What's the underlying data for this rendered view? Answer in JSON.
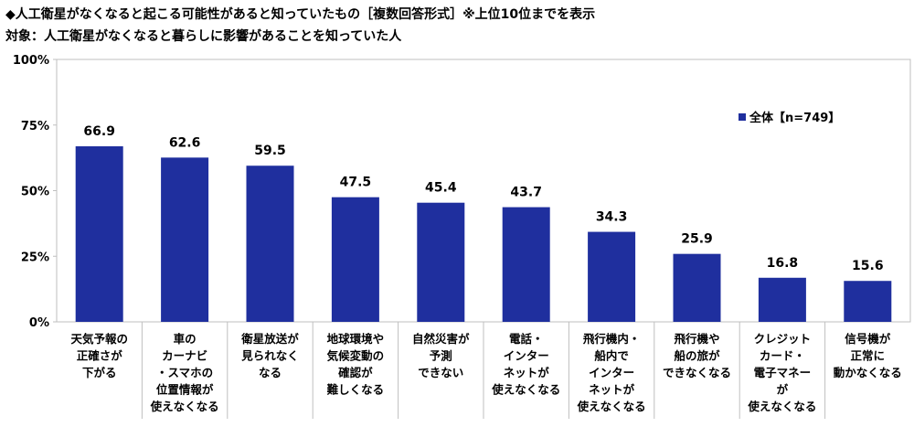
{
  "titles": {
    "line1": "◆人工衛星がなくなると起こる可能性があると知っていたもの［複数回答形式］※上位10位までを表示",
    "line2": "対象：人工衛星がなくなると暮らしに影響があることを知っていた人"
  },
  "chart_data": {
    "type": "bar",
    "categories": [
      [
        "天気予報の",
        "正確さが",
        "下がる"
      ],
      [
        "車の",
        "カーナビ",
        "・スマホの",
        "位置情報が",
        "使えなくなる"
      ],
      [
        "衛星放送が",
        "見られなく",
        "なる"
      ],
      [
        "地球環境や",
        "気候変動の",
        "確認が",
        "難しくなる"
      ],
      [
        "自然災害が",
        "予測",
        "できない"
      ],
      [
        "電話・",
        "インター",
        "ネットが",
        "使えなくなる"
      ],
      [
        "飛行機内・",
        "船内で",
        "インター",
        "ネットが",
        "使えなくなる"
      ],
      [
        "飛行機や",
        "船の旅が",
        "できなくなる"
      ],
      [
        "クレジット",
        "カード・",
        "電子マネー",
        "が",
        "使えなくなる"
      ],
      [
        "信号機が",
        "正常に",
        "動かなくなる"
      ]
    ],
    "series": [
      {
        "name": "全体【n=749】",
        "values": [
          66.9,
          62.6,
          59.5,
          47.5,
          45.4,
          43.7,
          34.3,
          25.9,
          16.8,
          15.6
        ]
      }
    ],
    "value_labels": [
      "66.9",
      "62.6",
      "59.5",
      "47.5",
      "45.4",
      "43.7",
      "34.3",
      "25.9",
      "16.8",
      "15.6"
    ],
    "ylim": [
      0,
      100
    ],
    "yticks": [
      0,
      25,
      50,
      75,
      100
    ],
    "ytick_labels": [
      "0%",
      "25%",
      "50%",
      "75%",
      "100%"
    ],
    "grid": false,
    "legend": "top-right",
    "bar_color": "#1f2f9e"
  }
}
